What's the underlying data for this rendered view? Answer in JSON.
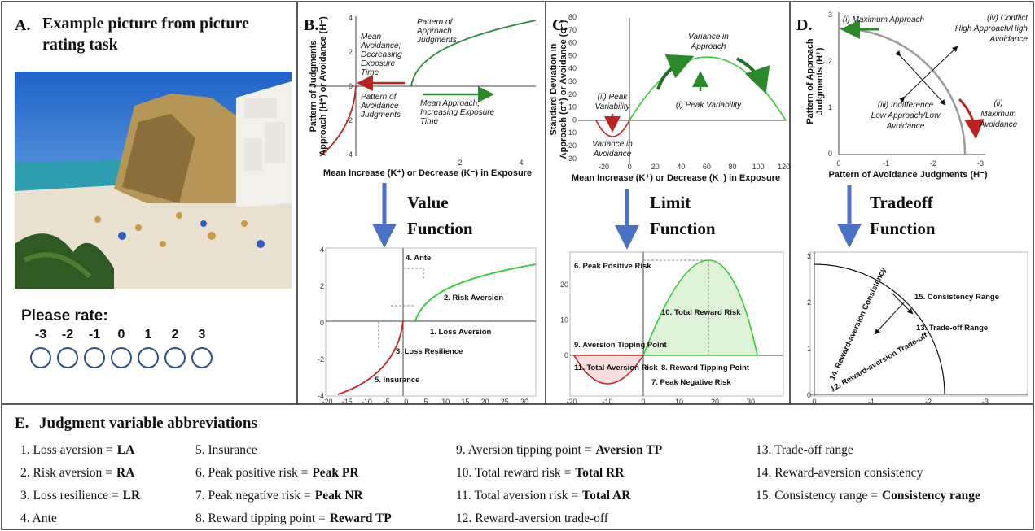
{
  "panel_a": {
    "label": "A.",
    "title": "Example picture from picture rating task",
    "prompt": "Please rate:",
    "scale": [
      -3,
      -2,
      -1,
      0,
      1,
      2,
      3
    ]
  },
  "panel_b": {
    "label": "B.",
    "top": {
      "y_label": [
        "Pattern of Judgments",
        "Approach (H⁺) or Avoidance (H⁻)"
      ],
      "x_label": "Mean Increase (K⁺) or Decrease (K⁻) in Exposure",
      "yticks": [
        4,
        2,
        0,
        -2,
        -4
      ],
      "xticks": [
        2,
        4
      ],
      "notes": [
        [
          "Mean",
          "Avoidance;",
          "Decreasing",
          "Exposure",
          "Time"
        ],
        [
          "Pattern of",
          "Approach",
          "Judgments"
        ],
        [
          "Pattern of",
          "Avoidance",
          "Judgments"
        ],
        [
          "Mean Approach;",
          "Increasing Exposure",
          "Time"
        ]
      ]
    },
    "arrow_label": [
      "Value",
      "Function"
    ],
    "bottom": {
      "yticks": [
        4,
        2,
        0,
        -2,
        -4
      ],
      "xticks": [
        -20,
        -15,
        -10,
        -5,
        0,
        5,
        10,
        15,
        20,
        25,
        30
      ],
      "notes": [
        "4. Ante",
        "2. Risk Aversion",
        "1. Loss Aversion",
        "3. Loss Resilience",
        "5. Insurance"
      ]
    }
  },
  "panel_c": {
    "label": "C.",
    "top": {
      "y_label": [
        "Standard Deviation in",
        "Approach (σ⁺) or Avoidance (σ⁻)"
      ],
      "x_label": "Mean Increase (K⁺) or Decrease (K⁻) in Exposure",
      "yticks": [
        80,
        70,
        60,
        50,
        40,
        30,
        20,
        10,
        0,
        -10,
        -20,
        -30
      ],
      "xticks": [
        -20,
        0,
        20,
        40,
        60,
        80,
        100,
        120
      ],
      "notes": [
        [
          "Variance in",
          "Approach"
        ],
        [
          "(i) Peak Variability"
        ],
        [
          "(ii) Peak",
          "Variability"
        ],
        [
          "Variance in",
          "Avoidance"
        ]
      ]
    },
    "arrow_label": [
      "Limit",
      "Function"
    ],
    "bottom": {
      "yticks": [
        20,
        10,
        0
      ],
      "xticks": [
        -20,
        -10,
        0,
        10,
        20,
        30
      ],
      "notes": [
        "6. Peak Positive Risk",
        "10. Total Reward Risk",
        "9. Aversion Tipping Point",
        "8. Reward Tipping Point",
        "11. Total Aversion Risk",
        "7. Peak Negative Risk"
      ]
    }
  },
  "panel_d": {
    "label": "D.",
    "top": {
      "y_label": [
        "Pattern of Approach",
        "Judgments (H⁺)"
      ],
      "x_label": "Pattern of Avoidance Judgments (H⁻)",
      "yticks": [
        3,
        2,
        1,
        0
      ],
      "xticks": [
        0,
        -1,
        -2,
        -3
      ],
      "notes": [
        [
          "(i) Maximum Approach"
        ],
        [
          "(iv) Conflict",
          "High Approach/High",
          "Avoidance"
        ],
        [
          "(iii) Indifference",
          "Low Approach/Low",
          "Avoidance"
        ],
        [
          "(ii)",
          "Maximum",
          "Avoidance"
        ]
      ]
    },
    "arrow_label": [
      "Tradeoff",
      "Function"
    ],
    "bottom": {
      "yticks": [
        3,
        2,
        1,
        0
      ],
      "xticks": [
        0,
        -1,
        -2,
        -3
      ],
      "notes": [
        "14. Reward-aversion Consistency",
        "15. Consistency Range",
        "13. Trade-off Range",
        "12. Reward-aversion Trade-off"
      ]
    }
  },
  "panel_e": {
    "label": "E.",
    "title": "Judgment variable abbreviations",
    "items": [
      {
        "text": "1. Loss aversion =",
        "abbr": "LA"
      },
      {
        "text": "2. Risk aversion =",
        "abbr": "RA"
      },
      {
        "text": "3. Loss resilience =",
        "abbr": "LR"
      },
      {
        "text": "4. Ante"
      },
      {
        "text": "5. Insurance"
      },
      {
        "text": "6. Peak positive risk =",
        "abbr": "Peak PR"
      },
      {
        "text": "7. Peak negative risk =",
        "abbr": "Peak NR"
      },
      {
        "text": "8. Reward tipping point =",
        "abbr": "Reward TP"
      },
      {
        "text": "9. Aversion tipping point =",
        "abbr": "Aversion TP"
      },
      {
        "text": "10. Total reward risk =",
        "abbr": "Total RR"
      },
      {
        "text": "11. Total aversion risk =",
        "abbr": "Total AR"
      },
      {
        "text": "12. Reward-aversion trade-off"
      },
      {
        "text": "13. Trade-off range"
      },
      {
        "text": "14. Reward-aversion consistency"
      },
      {
        "text": "15. Consistency range =",
        "abbr": "Consistency range"
      }
    ]
  }
}
